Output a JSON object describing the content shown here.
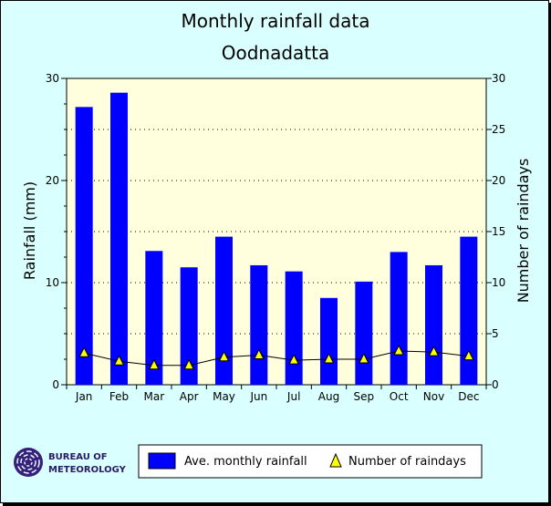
{
  "chart_data": {
    "type": "bar",
    "title": "Monthly rainfall data",
    "subtitle": "Oodnadatta",
    "categories": [
      "Jan",
      "Feb",
      "Mar",
      "Apr",
      "May",
      "Jun",
      "Jul",
      "Aug",
      "Sep",
      "Oct",
      "Nov",
      "Dec"
    ],
    "series": [
      {
        "name": "Ave. monthly rainfall",
        "type": "bar",
        "axis": "left",
        "values": [
          27.2,
          28.6,
          13.1,
          11.5,
          14.5,
          11.7,
          11.1,
          8.5,
          10.1,
          13.0,
          11.7,
          14.5
        ]
      },
      {
        "name": "Number of raindays",
        "type": "line",
        "marker": "triangle",
        "axis": "right",
        "values": [
          3.1,
          2.3,
          1.9,
          1.9,
          2.7,
          2.9,
          2.4,
          2.5,
          2.5,
          3.3,
          3.2,
          2.8
        ]
      }
    ],
    "ylabel": "Rainfall (mm)",
    "ylabel_right": "Number of raindays",
    "ylim": [
      0,
      30
    ],
    "ylim_right": [
      0,
      30
    ],
    "yticks_left": [
      "0",
      "10",
      "20",
      "30"
    ],
    "yticks_right": [
      "0",
      "5",
      "10",
      "15",
      "20",
      "25",
      "30"
    ],
    "grid": true,
    "legend_position": "bottom",
    "colors": {
      "bar": "#0000ff",
      "marker": "#ffff00",
      "plot_bg": "#ffffdd",
      "page_bg": "#d9ffff"
    }
  },
  "branding": {
    "line1": "Bureau of",
    "line2": "Meteorology"
  }
}
